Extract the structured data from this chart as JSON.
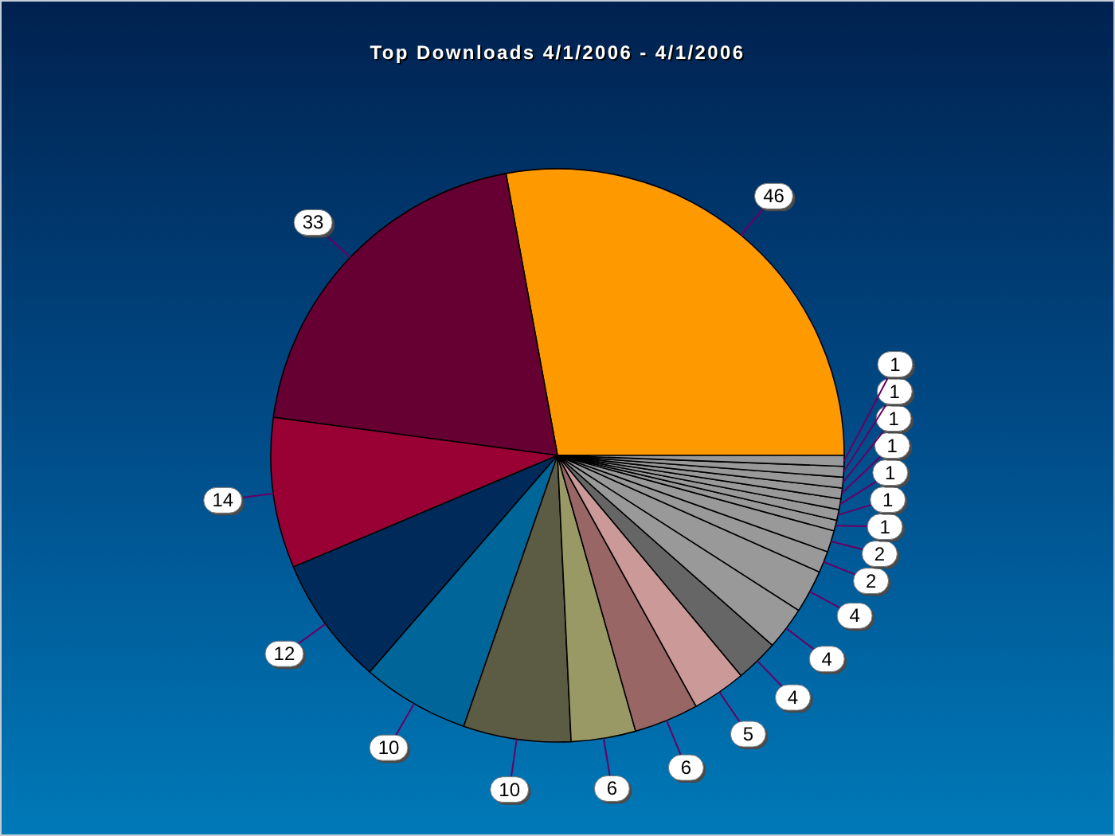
{
  "chart_data": {
    "type": "pie",
    "title": "Top Downloads 4/1/2006 - 4/1/2006",
    "categories": [
      null,
      null,
      null,
      null,
      null,
      null,
      null,
      null,
      null,
      null,
      null,
      null,
      null,
      null,
      null,
      null,
      null,
      null,
      null,
      null,
      null
    ],
    "values": [
      46,
      33,
      14,
      12,
      10,
      10,
      6,
      6,
      5,
      4,
      4,
      4,
      2,
      2,
      1,
      1,
      1,
      1,
      1,
      1,
      1
    ],
    "colors": [
      "#ff9900",
      "#660033",
      "#990033",
      "#002a5a",
      "#006699",
      "#5c5c45",
      "#999966",
      "#996666",
      "#cc9999",
      "#666666",
      "#999999",
      "#999999",
      "#999999",
      "#999999",
      "#999999",
      "#999999",
      "#999999",
      "#999999",
      "#999999",
      "#999999",
      "#999999"
    ],
    "data_labels": true
  }
}
